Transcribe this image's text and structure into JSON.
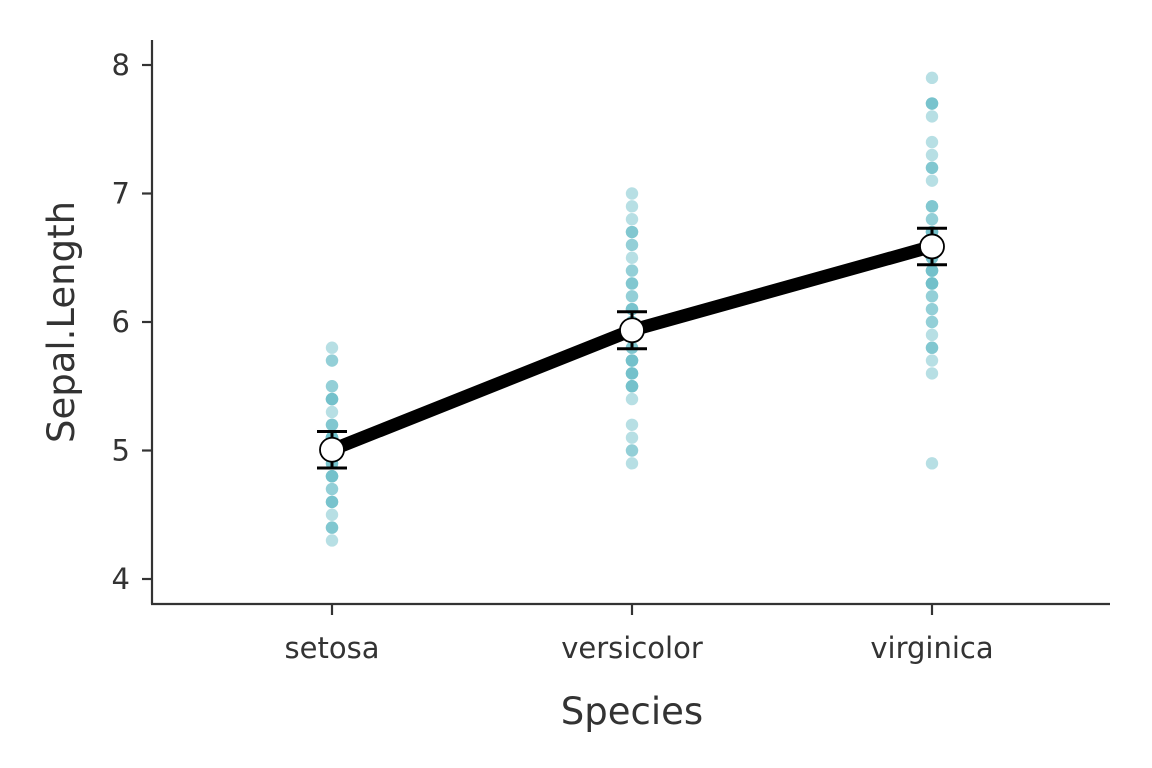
{
  "chart_data": {
    "type": "line",
    "xlabel": "Species",
    "ylabel": "Sepal.Length",
    "categories": [
      "setosa",
      "versicolor",
      "virginica"
    ],
    "ylim": [
      3.8,
      8.2
    ],
    "yticks": [
      4,
      5,
      6,
      7,
      8
    ],
    "grid": false,
    "legend": "none",
    "colors": {
      "points": "#6fc0c9",
      "line": "#000000",
      "mean_fill": "#ffffff",
      "axis": "#333333"
    },
    "series": [
      {
        "values": [
          5.006,
          5.936,
          6.588
        ],
        "error_low": [
          4.864,
          5.792,
          6.446
        ],
        "error_high": [
          5.148,
          6.08,
          6.73
        ]
      }
    ],
    "points": [
      {
        "category": "setosa",
        "values": [
          4.3,
          4.4,
          4.4,
          4.4,
          4.5,
          4.6,
          4.6,
          4.6,
          4.6,
          4.7,
          4.7,
          4.8,
          4.8,
          4.8,
          4.8,
          4.8,
          4.9,
          4.9,
          4.9,
          4.9,
          5.0,
          5.0,
          5.0,
          5.0,
          5.0,
          5.0,
          5.0,
          5.0,
          5.1,
          5.1,
          5.1,
          5.1,
          5.1,
          5.1,
          5.1,
          5.1,
          5.2,
          5.2,
          5.2,
          5.3,
          5.4,
          5.4,
          5.4,
          5.4,
          5.4,
          5.5,
          5.5,
          5.7,
          5.7,
          5.8
        ]
      },
      {
        "category": "versicolor",
        "values": [
          4.9,
          5.0,
          5.0,
          5.1,
          5.2,
          5.4,
          5.5,
          5.5,
          5.5,
          5.5,
          5.5,
          5.6,
          5.6,
          5.6,
          5.6,
          5.6,
          5.7,
          5.7,
          5.7,
          5.7,
          5.7,
          5.8,
          5.8,
          5.8,
          5.9,
          5.9,
          6.0,
          6.0,
          6.0,
          6.0,
          6.1,
          6.1,
          6.1,
          6.1,
          6.2,
          6.2,
          6.3,
          6.3,
          6.3,
          6.4,
          6.4,
          6.5,
          6.6,
          6.6,
          6.7,
          6.7,
          6.7,
          6.8,
          6.9,
          7.0
        ]
      },
      {
        "category": "virginica",
        "values": [
          4.9,
          5.6,
          5.7,
          5.8,
          5.8,
          5.8,
          5.9,
          6.0,
          6.0,
          6.1,
          6.1,
          6.2,
          6.2,
          6.3,
          6.3,
          6.3,
          6.3,
          6.3,
          6.3,
          6.4,
          6.4,
          6.4,
          6.4,
          6.5,
          6.5,
          6.5,
          6.5,
          6.7,
          6.7,
          6.7,
          6.7,
          6.7,
          6.8,
          6.8,
          6.9,
          6.9,
          6.9,
          7.1,
          7.2,
          7.2,
          7.2,
          7.3,
          7.4,
          7.6,
          7.7,
          7.7,
          7.7,
          7.7,
          7.9,
          6.4
        ]
      }
    ]
  }
}
